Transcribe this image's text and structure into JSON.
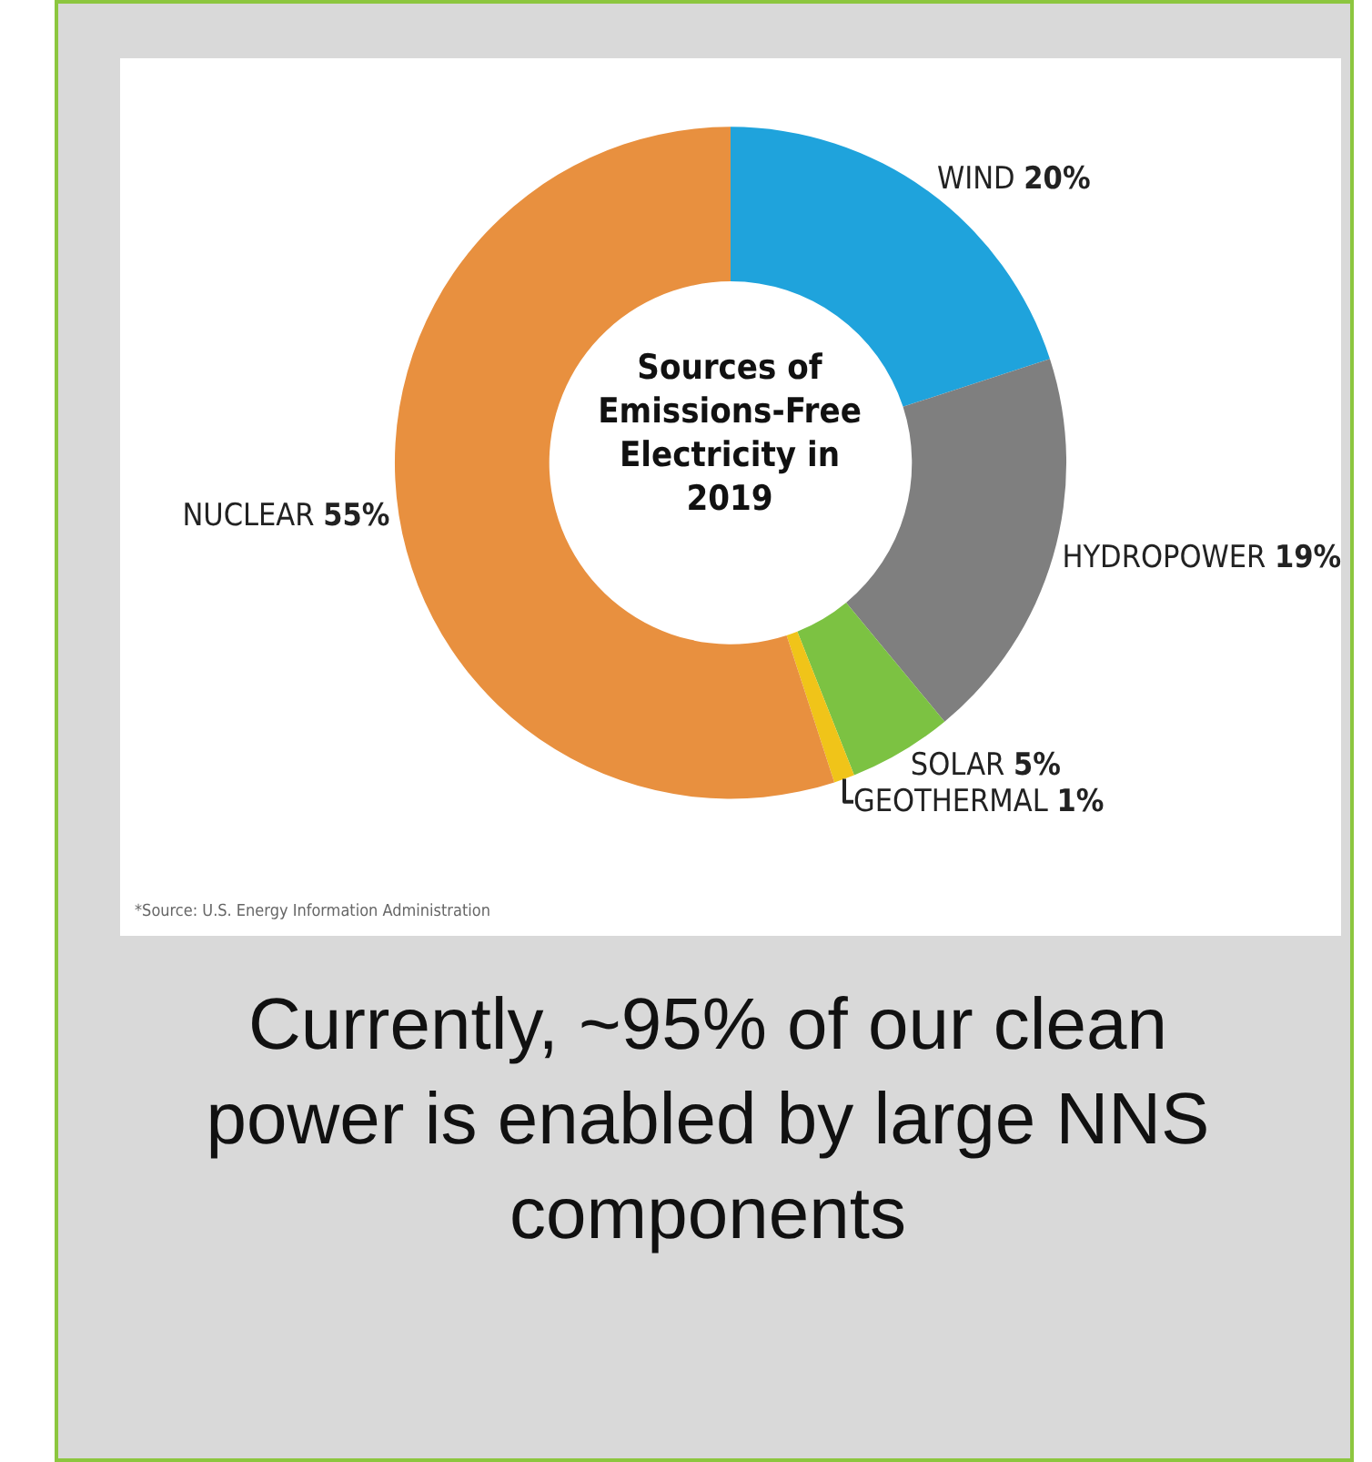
{
  "chart_data": {
    "type": "donut",
    "title": "Sources of Emissions-Free Electricity in 2019",
    "categories": [
      "WIND",
      "HYDROPOWER",
      "SOLAR",
      "GEOTHERMAL",
      "NUCLEAR"
    ],
    "values": [
      20,
      19,
      5,
      1,
      55
    ],
    "value_labels": [
      "20%",
      "19%",
      "5%",
      "1%",
      "55%"
    ],
    "colors": [
      "#1fa3dc",
      "#7f7f7f",
      "#7cc242",
      "#f0c419",
      "#e8903f"
    ],
    "annotations": [
      "*Source: U.S. Energy Information Administration",
      "Currently, ~95% of our clean power is enabled by large NNS components"
    ]
  }
}
